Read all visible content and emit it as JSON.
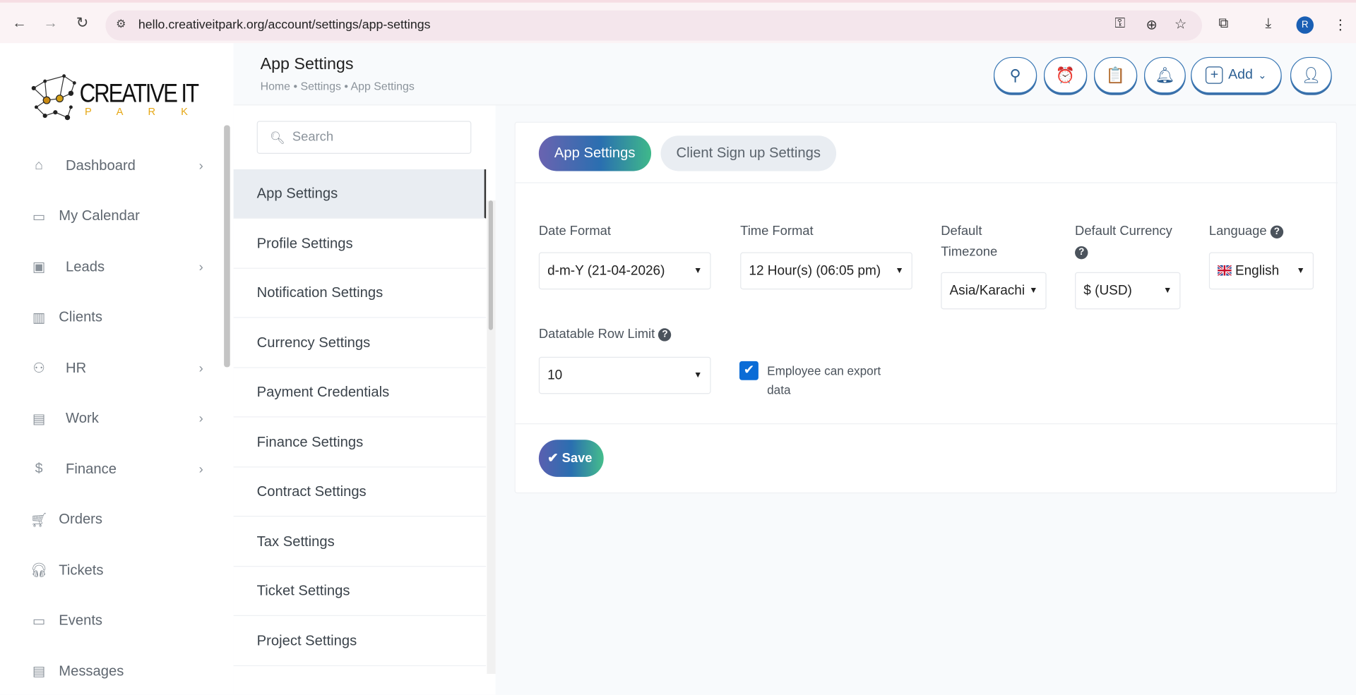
{
  "browser": {
    "url": "hello.creativeitpark.org/account/settings/app-settings",
    "profile_initial": "R"
  },
  "logo": {
    "text": "CREATIVE IT",
    "sub": "P A R K"
  },
  "sidebar": {
    "items": [
      {
        "label": "Dashboard",
        "icon": "home-icon",
        "chevron": true
      },
      {
        "label": "My Calendar",
        "icon": "calendar-icon",
        "chevron": false
      },
      {
        "label": "Leads",
        "icon": "id-card-icon",
        "chevron": true
      },
      {
        "label": "Clients",
        "icon": "building-icon",
        "chevron": false
      },
      {
        "label": "HR",
        "icon": "people-icon",
        "chevron": true
      },
      {
        "label": "Work",
        "icon": "briefcase-icon",
        "chevron": true
      },
      {
        "label": "Finance",
        "icon": "dollar-icon",
        "chevron": true
      },
      {
        "label": "Orders",
        "icon": "cart-icon",
        "chevron": false
      },
      {
        "label": "Tickets",
        "icon": "headset-icon",
        "chevron": false
      },
      {
        "label": "Events",
        "icon": "calendar-event-icon",
        "chevron": false
      },
      {
        "label": "Messages",
        "icon": "message-icon",
        "chevron": false
      }
    ]
  },
  "header": {
    "title": "App Settings",
    "breadcrumb": "Home • Settings • App Settings",
    "add_label": "Add"
  },
  "settings_menu": {
    "search_placeholder": "Search",
    "items": [
      "App Settings",
      "Profile Settings",
      "Notification Settings",
      "Currency Settings",
      "Payment Credentials",
      "Finance Settings",
      "Contract Settings",
      "Tax Settings",
      "Ticket Settings",
      "Project Settings"
    ],
    "active": "App Settings"
  },
  "tabs": [
    "App Settings",
    "Client Sign up Settings"
  ],
  "form": {
    "date_format": {
      "label": "Date Format",
      "value": "d-m-Y (21-04-2026)"
    },
    "time_format": {
      "label": "Time Format",
      "value": "12 Hour(s) (06:05 pm)"
    },
    "timezone": {
      "label1": "Default",
      "label2": "Timezone",
      "value": "Asia/Karachi"
    },
    "currency": {
      "label": "Default Currency",
      "value": "$ (USD)"
    },
    "language": {
      "label": "Language",
      "value": "English"
    },
    "row_limit": {
      "label": "Datatable Row Limit",
      "value": "10"
    },
    "export": {
      "label1": "Employee can export",
      "label2": "data",
      "checked": true
    },
    "help_glyph": "?"
  },
  "save_label": "Save",
  "colors": {
    "accent": "#2a6fb0",
    "checkbox": "#0b6cd6"
  }
}
